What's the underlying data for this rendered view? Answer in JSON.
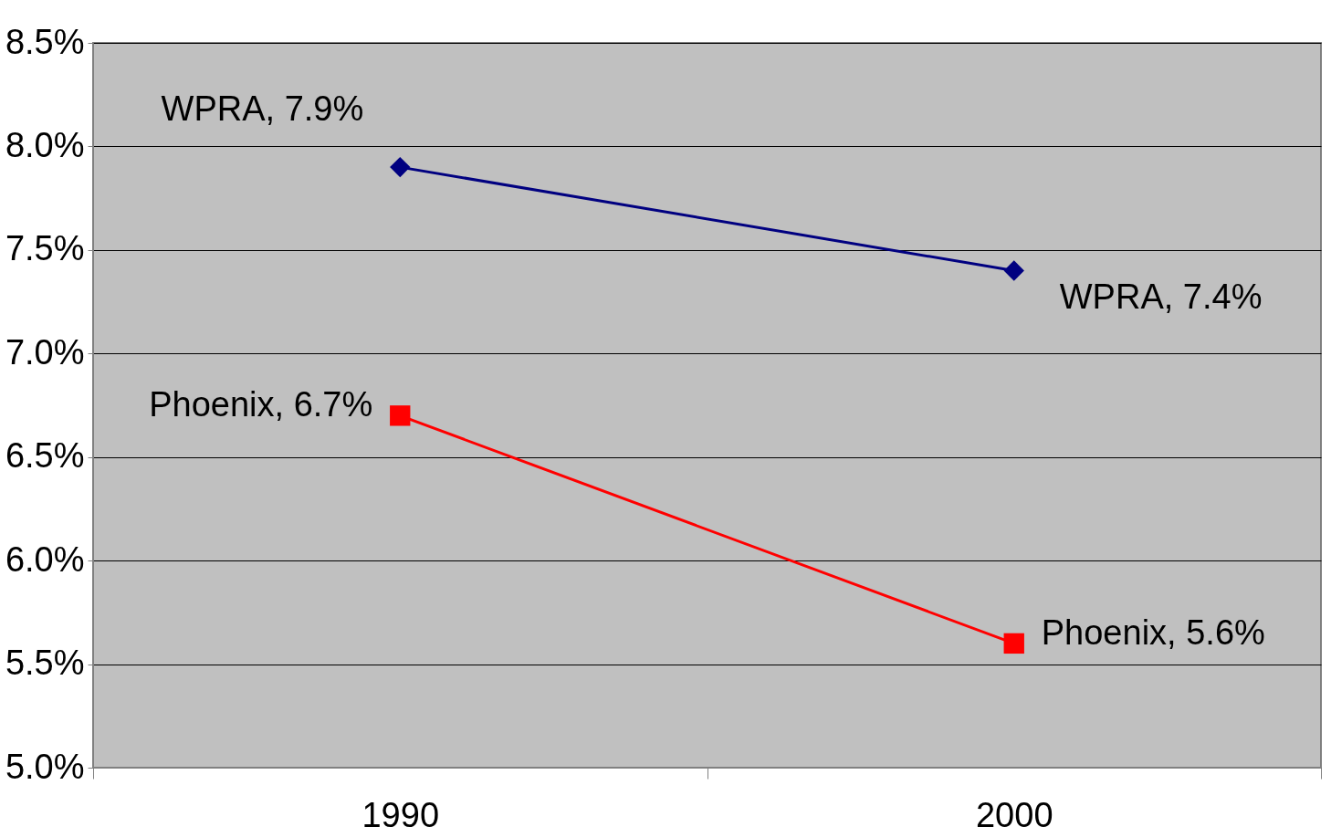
{
  "chart_data": {
    "type": "line",
    "categories": [
      "1990",
      "2000"
    ],
    "series": [
      {
        "color": "#000080",
        "marker": "diamond",
        "values": [
          7.9,
          7.4
        ],
        "value_labels": [
          "WPRA, 7.9%",
          "WPRA, 7.4%"
        ]
      },
      {
        "color": "#ff0000",
        "marker": "square",
        "values": [
          6.7,
          5.6
        ],
        "value_labels": [
          "Phoenix, 6.7%",
          "Phoenix, 5.6%"
        ]
      }
    ],
    "ylim": [
      5.0,
      8.5
    ],
    "yticks": [
      {
        "value": 5.0,
        "label": "5.0%"
      },
      {
        "value": 5.5,
        "label": "5.5%"
      },
      {
        "value": 6.0,
        "label": "6.0%"
      },
      {
        "value": 6.5,
        "label": "6.5%"
      },
      {
        "value": 7.0,
        "label": "7.0%"
      },
      {
        "value": 7.5,
        "label": "7.5%"
      },
      {
        "value": 8.0,
        "label": "8.0%"
      },
      {
        "value": 8.5,
        "label": "8.5%"
      }
    ],
    "grid": "y",
    "legend": false,
    "line_style": "solid"
  }
}
